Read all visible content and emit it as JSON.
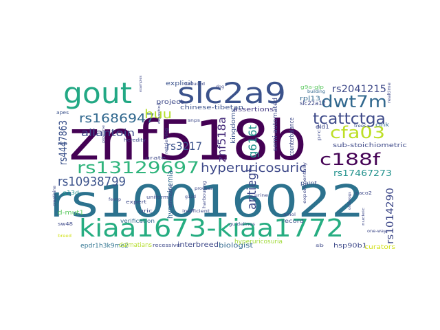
{
  "words": [
    {
      "text": "rs10016022",
      "color": "#2c728e",
      "layout": "a"
    },
    {
      "text": "znf518b",
      "color": "#440154",
      "layout": "b"
    },
    {
      "text": "kiaa1673-kiaa1772",
      "color": "#26ad81",
      "layout": "c"
    },
    {
      "text": "slc2a9",
      "color": "#3b528b",
      "layout": "d"
    },
    {
      "text": "gout",
      "color": "#22a884",
      "layout": "e"
    },
    {
      "text": "rs13129697",
      "color": "#2fb47c",
      "layout": "f"
    },
    {
      "text": "dwt7m",
      "color": "#31688e",
      "layout": "g"
    },
    {
      "text": "cfa03",
      "color": "#bddf26",
      "layout": "h"
    },
    {
      "text": "c188f",
      "color": "#440154",
      "layout": "i"
    },
    {
      "text": "tcattctga",
      "color": "#3e4a89",
      "layout": "j"
    },
    {
      "text": "hyperuricosuric",
      "color": "#3e4989",
      "layout": "k"
    },
    {
      "text": "rs1686947",
      "color": "#31688e",
      "layout": "l"
    },
    {
      "text": "rs10938799",
      "color": "#3b528b",
      "layout": "m"
    },
    {
      "text": "huu",
      "color": "#b5de2b",
      "layout": "n"
    },
    {
      "text": "rs2041215",
      "color": "#3e4989",
      "layout": "o"
    },
    {
      "text": "antiegf",
      "color": "#3e4989",
      "layout": "p"
    },
    {
      "text": "rs17467273",
      "color": "#21918c",
      "layout": "q"
    },
    {
      "text": "rs4447863",
      "color": "#3b528b",
      "layout": "r"
    },
    {
      "text": "rs1014290",
      "color": "#3e4989",
      "layout": "s"
    },
    {
      "text": "allantoin",
      "color": "#3e4a89",
      "layout": "t"
    },
    {
      "text": "znf518a",
      "color": "#472d7b",
      "layout": "u"
    },
    {
      "text": "g616t",
      "color": "#21918c",
      "layout": "v"
    },
    {
      "text": "rs3217",
      "color": "#3b528b",
      "layout": "w"
    },
    {
      "text": "hyperuricemia",
      "color": "#31688e",
      "layout": "x"
    },
    {
      "text": "interbreed",
      "color": "#3e4989",
      "layout": "y"
    },
    {
      "text": "biologist",
      "color": "#31688e",
      "layout": "z"
    },
    {
      "text": "epdr1h3k9me2",
      "color": "#2c728e",
      "layout": "aa"
    },
    {
      "text": "hsp90b1",
      "color": "#3e4989",
      "layout": "ab"
    },
    {
      "text": "assertions",
      "color": "#443983",
      "layout": "ac"
    },
    {
      "text": "chinese-tibetan",
      "color": "#3b528b",
      "layout": "ad"
    },
    {
      "text": "sub-stoichiometric",
      "color": "#3e4989",
      "layout": "ae"
    },
    {
      "text": "counterbalance",
      "color": "#3e4989",
      "layout": "af"
    },
    {
      "text": "explicit",
      "color": "#3b528b",
      "layout": "ag"
    },
    {
      "text": "project",
      "color": "#3e4989",
      "layout": "ah"
    },
    {
      "text": "kingdoms",
      "color": "#3b528b",
      "layout": "ai"
    },
    {
      "text": "semi-automated",
      "color": "#3e4989",
      "layout": "aj"
    },
    {
      "text": "rpl13",
      "color": "#31688e",
      "layout": "ak"
    },
    {
      "text": "slc22a12",
      "color": "#3e4989",
      "layout": "al"
    },
    {
      "text": "clnk",
      "color": "#31688e",
      "layout": "am"
    },
    {
      "text": "dld1",
      "color": "#3e4989",
      "layout": "an"
    },
    {
      "text": "paint",
      "color": "#3b528b",
      "layout": "ao"
    },
    {
      "text": "record",
      "color": "#3b528b",
      "layout": "ap"
    },
    {
      "text": "verification",
      "color": "#31688e",
      "layout": "aq"
    },
    {
      "text": "recessive",
      "color": "#3e4989",
      "layout": "ar"
    },
    {
      "text": "dalmatians",
      "color": "#b5de2b",
      "layout": "as"
    },
    {
      "text": "hyperuricosuria",
      "color": "#a0da39",
      "layout": "at"
    },
    {
      "text": "curators",
      "color": "#d2e21b",
      "layout": "au"
    },
    {
      "text": "d-mut1",
      "color": "#5ec962",
      "layout": "av"
    },
    {
      "text": "g13d",
      "color": "#21918c",
      "layout": "aw"
    },
    {
      "text": "sw48",
      "color": "#3e4989",
      "layout": "ax"
    },
    {
      "text": "uric",
      "color": "#3e4989",
      "layout": "ay"
    },
    {
      "text": "expert",
      "color": "#3e4989",
      "layout": "az"
    },
    {
      "text": "inefficient",
      "color": "#3e4989",
      "layout": "ba"
    },
    {
      "text": "urine",
      "color": "#3e4989",
      "layout": "bb"
    },
    {
      "text": "urate",
      "color": "#3e4989",
      "layout": "bc"
    },
    {
      "text": "heredity",
      "color": "#3e4989",
      "layout": "bd"
    },
    {
      "text": "guidelines",
      "color": "#3b528b",
      "layout": "be"
    },
    {
      "text": "g9a-glp",
      "color": "#5ec962",
      "layout": "bf"
    },
    {
      "text": "building",
      "color": "#31688e",
      "layout": "bg"
    },
    {
      "text": "apes",
      "color": "#3b528b",
      "layout": "bh"
    },
    {
      "text": "rko",
      "color": "#3b528b",
      "layout": "bi"
    },
    {
      "text": "trees",
      "color": "#3b528b",
      "layout": "bj"
    },
    {
      "text": "realtime",
      "color": "#3e4989",
      "layout": "bk"
    },
    {
      "text": "creatinine",
      "color": "#3e4989",
      "layout": "bl"
    },
    {
      "text": "caco2",
      "color": "#3e4989",
      "layout": "bm"
    },
    {
      "text": "one-way",
      "color": "#3e4989",
      "layout": "bn"
    },
    {
      "text": "uniform",
      "color": "#3e4989",
      "layout": "bo"
    },
    {
      "text": "process",
      "color": "#3e4989",
      "layout": "bp"
    },
    {
      "text": "deduced",
      "color": "#3e4989",
      "layout": "bq"
    },
    {
      "text": "dog",
      "color": "#3e4989",
      "layout": "br"
    },
    {
      "text": "examples",
      "color": "#3e4989",
      "layout": "bs"
    },
    {
      "text": "pipeline",
      "color": "#3e4989",
      "layout": "bt"
    },
    {
      "text": "retrieving",
      "color": "#3e4989",
      "layout": "bu"
    },
    {
      "text": "strengths",
      "color": "#3e4989",
      "layout": "bv"
    },
    {
      "text": "harbouring",
      "color": "#3e4989",
      "layout": "bw"
    },
    {
      "text": "experimentally",
      "color": "#3e4989",
      "layout": "bx"
    },
    {
      "text": "orthologs",
      "color": "#3e4989",
      "layout": "by"
    },
    {
      "text": "prc2",
      "color": "#3e4989",
      "layout": "bz"
    },
    {
      "text": "snps",
      "color": "#3e4989",
      "layout": "ca"
    },
    {
      "text": "amol",
      "color": "#3e4989",
      "layout": "cb"
    },
    {
      "text": "nucleic",
      "color": "#3e4989",
      "layout": "cc"
    },
    {
      "text": "depositing",
      "color": "#3e4989",
      "layout": "cd"
    },
    {
      "text": "fevnp",
      "color": "#3e4989",
      "layout": "ce"
    },
    {
      "text": "g12d",
      "color": "#3e4989",
      "layout": "cf"
    },
    {
      "text": "sb",
      "color": "#3e4989",
      "layout": "cg"
    },
    {
      "text": "breed",
      "color": "#d2e21b",
      "layout": "ch"
    }
  ]
}
